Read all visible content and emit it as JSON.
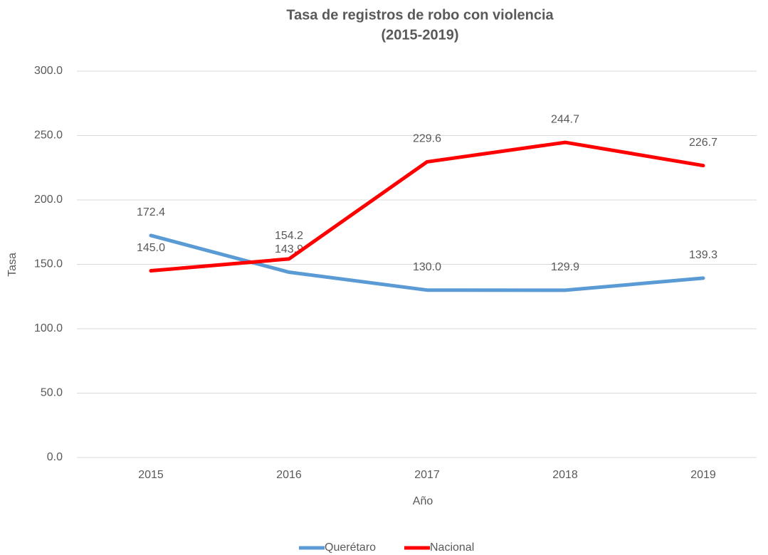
{
  "chart_data": {
    "type": "line",
    "title": [
      "Tasa de registros de robo con violencia",
      "(2015-2019)"
    ],
    "x_label": "Año",
    "y_label": "Tasa",
    "categories": [
      "2015",
      "2016",
      "2017",
      "2018",
      "2019"
    ],
    "series": [
      {
        "name": "Querétaro",
        "color": "#5b9bd5",
        "values": [
          172.4,
          143.9,
          130.0,
          129.9,
          139.3
        ],
        "value_labels": [
          "172.4",
          "143.9",
          "130.0",
          "129.9",
          "139.3"
        ]
      },
      {
        "name": "Nacional",
        "color": "#ff0000",
        "values": [
          145.0,
          154.2,
          229.6,
          244.7,
          226.7
        ],
        "value_labels": [
          "145.0",
          "154.2",
          "229.6",
          "244.7",
          "226.7"
        ]
      }
    ],
    "ylim": [
      0,
      300
    ],
    "yticks": [
      {
        "value": 0,
        "label": "0.0"
      },
      {
        "value": 50,
        "label": "50.0"
      },
      {
        "value": 100,
        "label": "100.0"
      },
      {
        "value": 150,
        "label": "150.0"
      },
      {
        "value": 200,
        "label": "200.0"
      },
      {
        "value": 250,
        "label": "250.0"
      },
      {
        "value": 300,
        "label": "300.0"
      }
    ],
    "grid": true,
    "legend": "bottom"
  }
}
